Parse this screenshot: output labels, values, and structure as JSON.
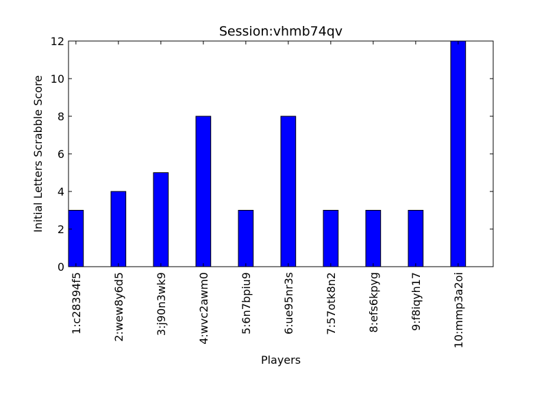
{
  "chart_data": {
    "type": "bar",
    "title": "Session:vhmb74qv",
    "xlabel": "Players",
    "ylabel": "Initial Letters Scrabble Score",
    "categories": [
      "1:c28394f5",
      "2:wew8y6d5",
      "3:j90n3wk9",
      "4:wvc2awm0",
      "5:6n7bpiu9",
      "6:ue95nr3s",
      "7:57otk8n2",
      "8:efs6kpyg",
      "9:f8iqyh17",
      "10:mmp3a2oi"
    ],
    "values": [
      3,
      4,
      5,
      8,
      3,
      8,
      3,
      3,
      3,
      12
    ],
    "ylim": [
      0,
      12
    ],
    "yticks": [
      "0",
      "2",
      "4",
      "6",
      "8",
      "10",
      "12"
    ],
    "xlim": [
      0,
      10
    ],
    "bar_width": 0.35,
    "bar_color": "#0000ff",
    "edge_color": "#000000",
    "grid": false,
    "legend": "none"
  }
}
